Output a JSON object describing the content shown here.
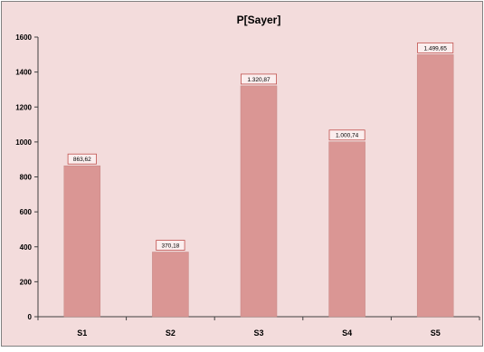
{
  "chart_data": {
    "type": "bar",
    "title": "P[Sayer]",
    "xlabel": "",
    "ylabel": "",
    "categories": [
      "S1",
      "S2",
      "S3",
      "S4",
      "S5"
    ],
    "values": [
      863.62,
      370.18,
      1320.87,
      1000.74,
      1499.65
    ],
    "data_labels": [
      "863,62",
      "370,18",
      "1.320,87",
      "1.000,74",
      "1.499,65"
    ],
    "yticks": [
      0,
      200,
      400,
      600,
      800,
      1000,
      1200,
      1400,
      1600
    ],
    "ylim": [
      0,
      1600
    ],
    "grid": false,
    "legend": "none",
    "colors": {
      "background": "#f3dcdc",
      "bar": "#da9694",
      "bar_stroke": "#c58683",
      "label_border": "#c0504d",
      "frame": "#808080",
      "axis": "#404040"
    }
  }
}
